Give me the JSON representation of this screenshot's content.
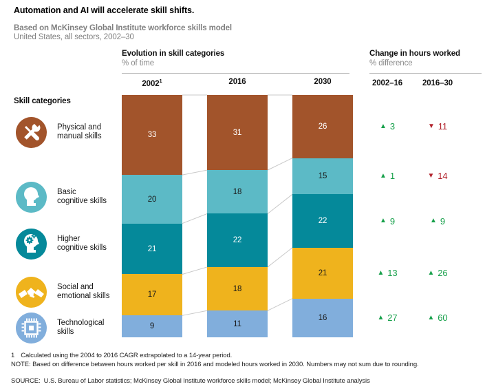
{
  "title": "Automation and AI will accelerate skill shifts.",
  "subtitle": "Based on McKinsey Global Institute workforce skills model",
  "subtitle2": "United States, all sectors, 2002–30",
  "left_panel": {
    "heading": "Skill categories"
  },
  "sections": {
    "evolution": {
      "title": "Evolution in skill categories",
      "subtitle": "% of time"
    },
    "hours": {
      "title": "Change in hours worked",
      "subtitle": "% difference"
    }
  },
  "chart_data": {
    "type": "stacked-bar-100",
    "value_unit": "% of time",
    "years": [
      "2002",
      "2016",
      "2030"
    ],
    "year_footnotes": [
      "1",
      "",
      ""
    ],
    "categories": [
      {
        "label": "Physical and\nmanual skills",
        "color": "#a2542b",
        "text": "#ffffff",
        "values": [
          33,
          31,
          26
        ]
      },
      {
        "label": "Basic\ncognitive skills",
        "color": "#5cbac6",
        "text": "#1a1a1a",
        "values": [
          20,
          18,
          15
        ]
      },
      {
        "label": "Higher\ncognitive skills",
        "color": "#05899a",
        "text": "#ffffff",
        "values": [
          21,
          22,
          22
        ]
      },
      {
        "label": "Social and\nemotional skills",
        "color": "#efb31d",
        "text": "#1a1a1a",
        "values": [
          17,
          18,
          21
        ]
      },
      {
        "label": "Technological\nskills",
        "color": "#81aedc",
        "text": "#1a1a1a",
        "values": [
          9,
          11,
          16
        ]
      }
    ],
    "changes": {
      "unit": "% difference",
      "periods": [
        "2002–16",
        "2016–30"
      ],
      "up_glyph": "▲",
      "down_glyph": "▼",
      "up_color": "#16a04a",
      "down_color": "#b2222c",
      "rows": [
        [
          {
            "direction": "up",
            "value": 3
          },
          {
            "direction": "down",
            "value": 11
          }
        ],
        [
          {
            "direction": "up",
            "value": 1
          },
          {
            "direction": "down",
            "value": 14
          }
        ],
        [
          {
            "direction": "up",
            "value": 9
          },
          {
            "direction": "up",
            "value": 9
          }
        ],
        [
          {
            "direction": "up",
            "value": 13
          },
          {
            "direction": "up",
            "value": 26
          }
        ],
        [
          {
            "direction": "up",
            "value": 27
          },
          {
            "direction": "up",
            "value": 60
          }
        ]
      ]
    }
  },
  "footer": {
    "footnote_marker": "1",
    "footnote": "Calculated using the 2004 to 2016 CAGR extrapolated to a 14-year period.",
    "note": "NOTE: Based on difference between hours worked per skill in 2016 and modeled hours worked in 2030. Numbers may not sum due to rounding.",
    "source": "SOURCE:  U.S. Bureau of Labor statistics; McKinsey Global Institute workforce skills model; McKinsey Global Institute analysis"
  }
}
